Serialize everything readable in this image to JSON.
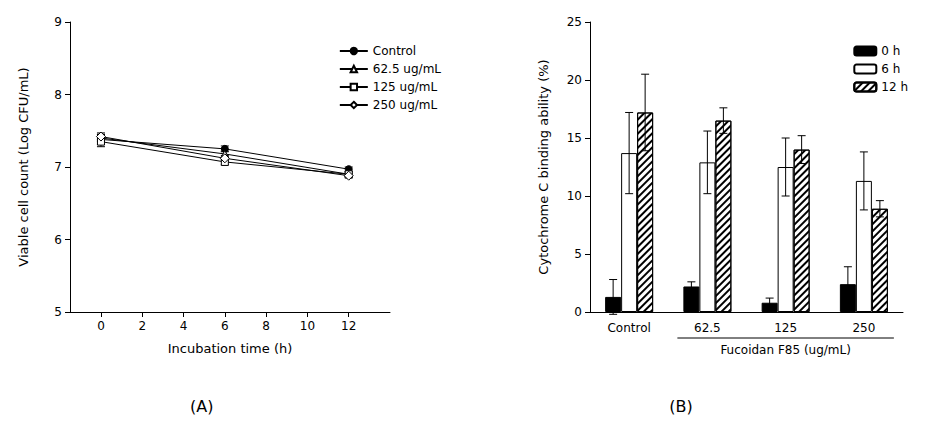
{
  "chart_data": [
    {
      "type": "line",
      "x_label": "Incubation time (h)",
      "y_label": "Viable cell count (Log CFU/mL)",
      "annotations": [
        "(A)"
      ],
      "x": [
        0,
        6,
        12
      ],
      "xlim": [
        -1.5,
        14
      ],
      "xticks": [
        0,
        2,
        4,
        6,
        8,
        10,
        12
      ],
      "ylim": [
        5,
        9
      ],
      "yticks": [
        5,
        6,
        7,
        8,
        9
      ],
      "grid": false,
      "legend": "upper right",
      "series": [
        {
          "name": "Control",
          "color": "#000000",
          "marker": "filled_circle",
          "values": [
            7.38,
            7.25,
            6.97
          ],
          "errors": [
            0.07,
            0.04,
            0.03
          ]
        },
        {
          "name": "62.5 ug/mL",
          "color": "#000000",
          "marker": "open_triangle",
          "values": [
            7.4,
            7.18,
            6.9
          ],
          "errors": [
            0.05,
            0.04,
            0.03
          ]
        },
        {
          "name": "125 ug/mL",
          "color": "#000000",
          "marker": "open_square",
          "values": [
            7.35,
            7.07,
            6.9
          ],
          "errors": [
            0.07,
            0.04,
            0.03
          ]
        },
        {
          "name": "250 ug/mL",
          "color": "#000000",
          "marker": "open_diamond",
          "values": [
            7.42,
            7.12,
            6.88
          ],
          "errors": [
            0.05,
            0.04,
            0.03
          ]
        }
      ]
    },
    {
      "type": "bar",
      "y_label": "Cytochrome C binding ability (%)",
      "annotations": [
        "Fucoidan F85 (ug/mL)",
        "(B)"
      ],
      "categories": [
        "Control",
        "62.5",
        "125",
        "250"
      ],
      "ylim": [
        0,
        25
      ],
      "yticks": [
        0,
        5,
        10,
        15,
        20,
        25
      ],
      "grid": false,
      "legend": "upper right",
      "series": [
        {
          "name": "0 h",
          "color": "#000000",
          "marker": "solid",
          "values": [
            1.3,
            2.2,
            0.8,
            2.4
          ],
          "errors": [
            1.5,
            0.4,
            0.4,
            1.5
          ]
        },
        {
          "name": "6 h",
          "color": "#000000",
          "marker": "open",
          "values": [
            13.7,
            12.9,
            12.5,
            11.3
          ],
          "errors": [
            3.5,
            2.7,
            2.5,
            2.5
          ]
        },
        {
          "name": "12 h",
          "color": "#000000",
          "marker": "hatched",
          "values": [
            17.2,
            16.5,
            14.0,
            8.9
          ],
          "errors": [
            3.3,
            1.1,
            1.2,
            0.7
          ]
        }
      ]
    }
  ]
}
